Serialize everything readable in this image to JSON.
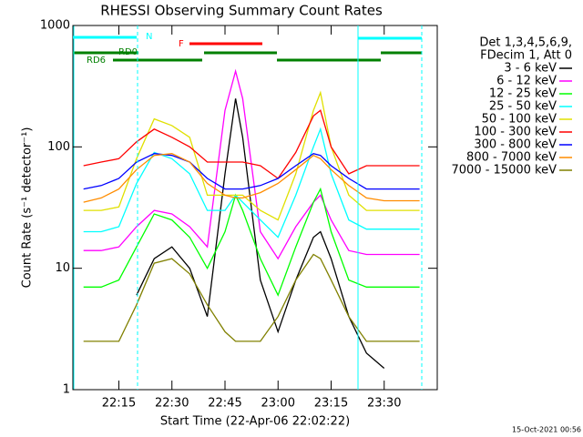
{
  "chart_data": {
    "type": "line",
    "title": "RHESSI Observing Summary Count Rates",
    "xlabel": "Start Time (22-Apr-06 22:02:22)",
    "ylabel": "Count Rate (s⁻¹ detector⁻¹)",
    "legend_header": [
      "Det 1,3,4,5,6,9,",
      "FDecim 1, Att 0"
    ],
    "footer": "15-Oct-2021 00:56",
    "annotations": [
      "N",
      "F",
      "RD0",
      "RD6"
    ],
    "x": [
      "22:05",
      "22:10",
      "22:15",
      "22:20",
      "22:25",
      "22:30",
      "22:35",
      "22:40",
      "22:45",
      "22:48",
      "22:50",
      "22:55",
      "23:00",
      "23:05",
      "23:10",
      "23:12",
      "23:15",
      "23:20",
      "23:25",
      "23:30",
      "23:35",
      "23:40"
    ],
    "xlim": [
      "22:02",
      "23:45"
    ],
    "xticks": [
      "22:15",
      "22:30",
      "22:45",
      "23:00",
      "23:15",
      "23:30"
    ],
    "ylim": [
      1,
      1000
    ],
    "yticks": [
      1,
      10,
      100,
      1000
    ],
    "log_y": true,
    "legend": "right",
    "series": [
      {
        "name": "3 - 6 keV",
        "color": "#000000",
        "values": [
          null,
          null,
          null,
          6,
          12,
          15,
          10,
          4,
          60,
          250,
          120,
          8,
          3,
          8,
          18,
          20,
          12,
          4,
          2,
          1.5,
          null,
          null
        ]
      },
      {
        "name": "6 - 12 keV",
        "color": "#ff00ff",
        "values": [
          14,
          14,
          15,
          22,
          30,
          28,
          22,
          15,
          200,
          420,
          250,
          20,
          12,
          22,
          35,
          40,
          25,
          14,
          13,
          13,
          13,
          13
        ]
      },
      {
        "name": "12 - 25 keV",
        "color": "#00ff00",
        "values": [
          7,
          7,
          8,
          15,
          28,
          25,
          18,
          10,
          20,
          40,
          30,
          12,
          6,
          15,
          35,
          45,
          20,
          8,
          7,
          7,
          7,
          7
        ]
      },
      {
        "name": "25 - 50 keV",
        "color": "#00ffff",
        "values": [
          20,
          20,
          22,
          50,
          90,
          80,
          60,
          30,
          30,
          40,
          35,
          25,
          18,
          40,
          100,
          140,
          60,
          25,
          21,
          21,
          21,
          21
        ]
      },
      {
        "name": "50 - 100 keV",
        "color": "#e0e000",
        "values": [
          30,
          30,
          32,
          80,
          170,
          150,
          120,
          40,
          40,
          40,
          40,
          30,
          25,
          60,
          200,
          280,
          100,
          40,
          30,
          30,
          30,
          30
        ]
      },
      {
        "name": "100 - 300 keV",
        "color": "#ff0000",
        "values": [
          70,
          75,
          80,
          110,
          140,
          120,
          100,
          75,
          75,
          75,
          75,
          70,
          55,
          90,
          180,
          200,
          100,
          60,
          70,
          70,
          70,
          70
        ]
      },
      {
        "name": "300 - 800 keV",
        "color": "#0000ff",
        "values": [
          45,
          48,
          55,
          75,
          88,
          85,
          75,
          55,
          45,
          45,
          45,
          48,
          55,
          70,
          88,
          85,
          70,
          55,
          45,
          45,
          45,
          45
        ]
      },
      {
        "name": "800 - 7000 keV",
        "color": "#ff8c00",
        "values": [
          35,
          38,
          45,
          65,
          85,
          88,
          75,
          50,
          40,
          38,
          38,
          42,
          50,
          65,
          85,
          80,
          65,
          48,
          38,
          36,
          36,
          36
        ]
      },
      {
        "name": "7000 - 15000 keV",
        "color": "#808000",
        "values": [
          2.5,
          2.5,
          2.5,
          5,
          11,
          12,
          9,
          5,
          3,
          2.5,
          2.5,
          2.5,
          4,
          8,
          13,
          12,
          8,
          4,
          2.5,
          2.5,
          2.5,
          2.5
        ]
      }
    ]
  }
}
